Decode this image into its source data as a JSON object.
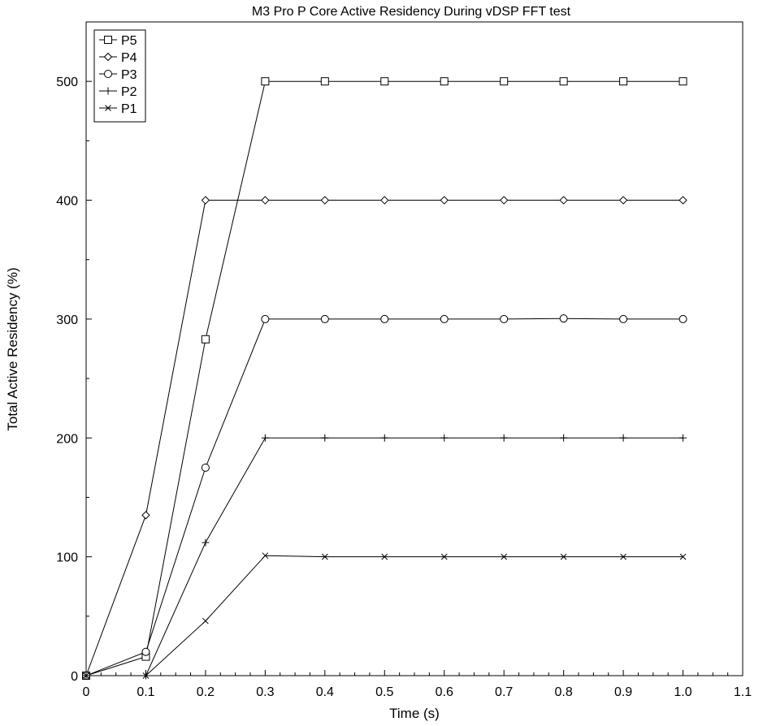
{
  "chart_data": {
    "type": "line",
    "title": "M3 Pro P Core Active Residency During vDSP FFT test",
    "xlabel": "Time (s)",
    "ylabel": "Total Active Residency (%)",
    "xlim": [
      0,
      1.1
    ],
    "ylim": [
      0,
      550
    ],
    "xticks": [
      "0",
      "0.1",
      "0.2",
      "0.3",
      "0.4",
      "0.5",
      "0.6",
      "0.7",
      "0.8",
      "0.9",
      "1.0",
      "1.1"
    ],
    "yticks": [
      "0",
      "100",
      "200",
      "300",
      "400",
      "500"
    ],
    "grid": false,
    "legend_position": "top-left",
    "x": [
      0,
      0.1,
      0.2,
      0.3,
      0.4,
      0.5,
      0.6,
      0.7,
      0.8,
      0.9,
      1.0
    ],
    "series": [
      {
        "name": "P5",
        "marker": "square",
        "values": [
          0,
          16,
          283,
          500,
          500,
          500,
          500,
          500,
          500,
          500,
          500
        ]
      },
      {
        "name": "P4",
        "marker": "diamond",
        "values": [
          0,
          135,
          400,
          400,
          400,
          400,
          400,
          400,
          400,
          400,
          400
        ]
      },
      {
        "name": "P3",
        "marker": "circle",
        "values": [
          0,
          20,
          175,
          300,
          300,
          300,
          300,
          300,
          300.5,
          300,
          300
        ]
      },
      {
        "name": "P2",
        "marker": "plus",
        "values": [
          0,
          0,
          112,
          200,
          200,
          200,
          200,
          200,
          200,
          200,
          200
        ]
      },
      {
        "name": "P1",
        "marker": "cross",
        "values": [
          0,
          0,
          46,
          101,
          100,
          100,
          100,
          100,
          100,
          100,
          100
        ]
      }
    ]
  }
}
